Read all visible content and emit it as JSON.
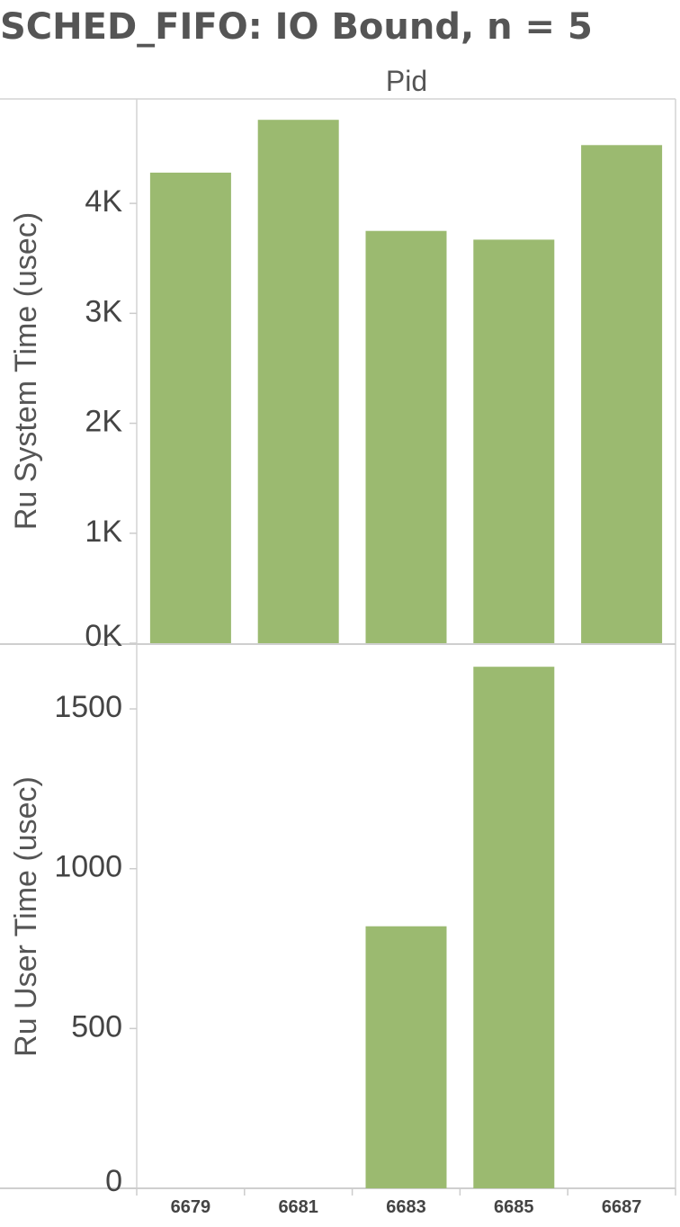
{
  "title": "SCHED_FIFO: IO Bound, n = 5",
  "chart_data": {
    "type": "bar",
    "column_header": "Pid",
    "categories": [
      "6679",
      "6681",
      "6683",
      "6685",
      "6687"
    ],
    "color": "#9bba70",
    "grid": false,
    "panels": [
      {
        "ylabel": "Ru System Time (usec)",
        "ylim": [
          0,
          4950
        ],
        "yticks": [
          {
            "value": 0,
            "label": "0K"
          },
          {
            "value": 1000,
            "label": "1K"
          },
          {
            "value": 2000,
            "label": "2K"
          },
          {
            "value": 3000,
            "label": "3K"
          },
          {
            "value": 4000,
            "label": "4K"
          }
        ],
        "values": [
          4280,
          4760,
          3750,
          3670,
          4530
        ]
      },
      {
        "ylabel": "Ru User Time (usec)",
        "ylim": [
          0,
          1700
        ],
        "yticks": [
          {
            "value": 0,
            "label": "0"
          },
          {
            "value": 500,
            "label": "500"
          },
          {
            "value": 1000,
            "label": "1000"
          },
          {
            "value": 1500,
            "label": "1500"
          }
        ],
        "values": [
          0,
          0,
          820,
          1632,
          0
        ]
      }
    ]
  }
}
